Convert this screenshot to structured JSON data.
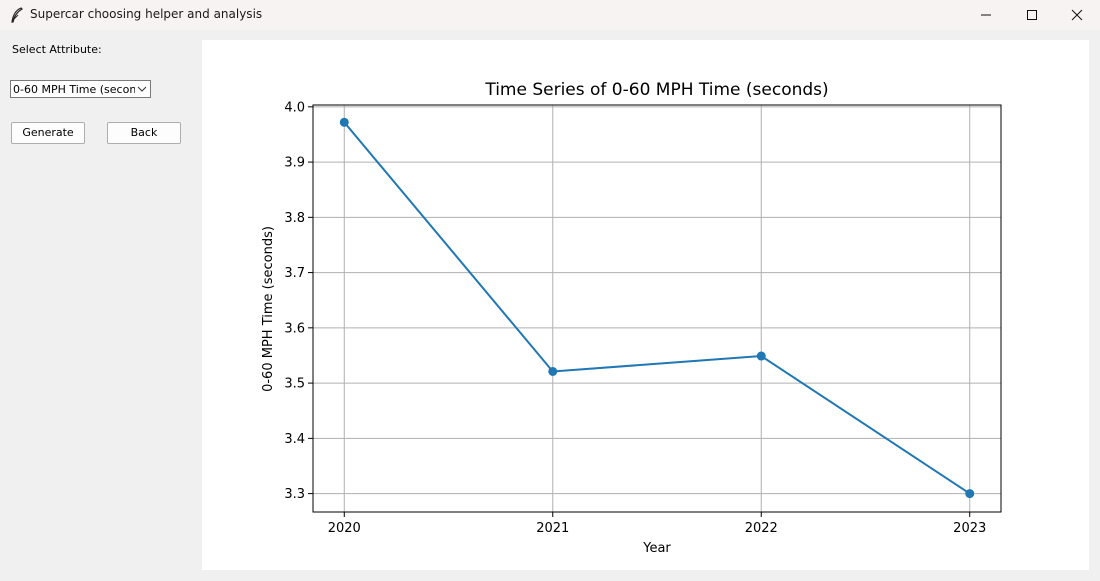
{
  "window": {
    "title": "Supercar choosing helper and analysis",
    "icon": "feather-icon"
  },
  "sidebar": {
    "attribute_label": "Select Attribute:",
    "attribute_select": {
      "value": "0-60 MPH Time (secon"
    },
    "generate_label": "Generate",
    "back_label": "Back"
  },
  "chart_data": {
    "type": "line",
    "title": "Time Series of 0-60 MPH Time (seconds)",
    "xlabel": "Year",
    "ylabel": "0-60 MPH Time (seconds)",
    "x": [
      2020,
      2021,
      2022,
      2023
    ],
    "x_ticks": [
      "2020",
      "2021",
      "2022",
      "2023"
    ],
    "y_ticks": [
      "3.3",
      "3.4",
      "3.5",
      "3.6",
      "3.7",
      "3.8",
      "3.9",
      "4.0"
    ],
    "y_tick_values": [
      3.3,
      3.4,
      3.5,
      3.6,
      3.7,
      3.8,
      3.9,
      4.0
    ],
    "series": [
      {
        "values": [
          3.972,
          3.521,
          3.549,
          3.3
        ],
        "color": "#1f77b4"
      }
    ],
    "xlim": [
      2019.85,
      2023.15
    ],
    "ylim": [
      3.2667,
      4.0033
    ],
    "grid": true
  }
}
